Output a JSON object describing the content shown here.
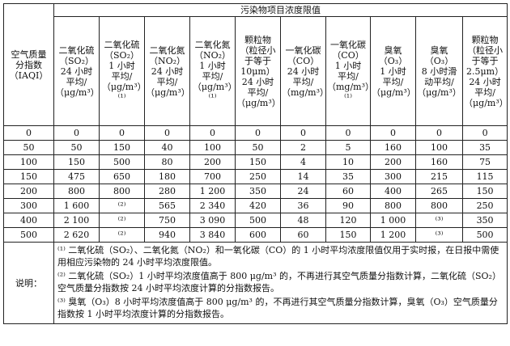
{
  "table": {
    "top_header": "污染物项目浓度限值",
    "iaqi_header": "空气质量\n分指数\n（IAQI）",
    "columns": [
      "二氧化硫\n（SO₂）\n24 小时\n平均/\n（μg/m³）",
      "二氧化硫\n（SO₂）\n1 小时\n平均/\n（μg/m³）⁽¹⁾",
      "二氧化氮\n（NO₂）\n24 小时\n平均/\n（μg/m³）",
      "二氧化氮\n（NO₂）\n1 小时\n平均/\n（μg/m³）⁽¹⁾",
      "颗粒物\n（粒径小\n于等于\n10μm）\n24 小时\n平均/\n（μg/m³）",
      "一氧化碳\n（CO）\n24 小时\n平均/\n（mg/m³）",
      "一氧化碳\n（CO）\n1 小时\n平均/\n（mg/m³）⁽¹⁾",
      "臭氧（O₃）\n1 小时\n平均/\n（μg/m³）",
      "臭氧（O₃）\n8 小时滑\n动平均/\n（μg/m³）",
      "颗粒物\n（粒径小\n于等于\n2.5μm）\n24 小时\n平均/\n（μg/m³）"
    ],
    "rows": [
      [
        "0",
        "0",
        "0",
        "0",
        "0",
        "0",
        "0",
        "0",
        "0",
        "0",
        "0"
      ],
      [
        "50",
        "50",
        "150",
        "40",
        "100",
        "50",
        "2",
        "5",
        "160",
        "100",
        "35"
      ],
      [
        "100",
        "150",
        "500",
        "80",
        "200",
        "150",
        "4",
        "10",
        "200",
        "160",
        "75"
      ],
      [
        "150",
        "475",
        "650",
        "180",
        "700",
        "250",
        "14",
        "35",
        "300",
        "215",
        "115"
      ],
      [
        "200",
        "800",
        "800",
        "280",
        "1 200",
        "350",
        "24",
        "60",
        "400",
        "265",
        "150"
      ],
      [
        "300",
        "1 600",
        "⁽²⁾",
        "565",
        "2 340",
        "420",
        "36",
        "90",
        "800",
        "800",
        "250"
      ],
      [
        "400",
        "2 100",
        "⁽²⁾",
        "750",
        "3 090",
        "500",
        "48",
        "120",
        "1 000",
        "⁽³⁾",
        "350"
      ],
      [
        "500",
        "2 620",
        "⁽²⁾",
        "940",
        "3 840",
        "600",
        "60",
        "150",
        "1 200",
        "⁽³⁾",
        "500"
      ]
    ],
    "notes_label": "说明：",
    "notes": [
      "⁽¹⁾ 二氧化硫（SO₂）、二氧化氮（NO₂）和一氧化碳（CO）的 1 小时平均浓度限值仅用于实时报，在日报中需使用相应污染物的 24 小时平均浓度限值。",
      "⁽²⁾ 二氧化硫（SO₂）1 小时平均浓度值高于 800 μg/m³ 的，不再进行其空气质量分指数计算，二氧化硫（SO₂）空气质量分指数按 24 小时平均浓度计算的分指数报告。",
      "⁽³⁾ 臭氧（O₃）8 小时平均浓度值高于 800 μg/m³ 的，不再进行其空气质量分指数计算，臭氧（O₃）空气质量分指数按 1 小时平均浓度计算的分指数报告。"
    ]
  }
}
